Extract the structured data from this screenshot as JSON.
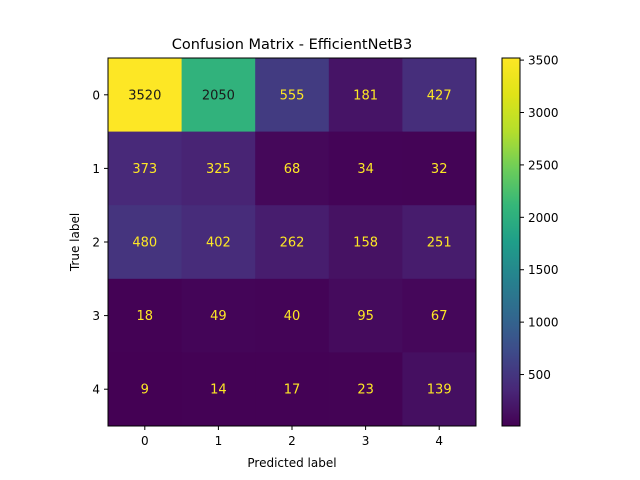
{
  "chart_data": {
    "type": "heatmap",
    "title": "Confusion Matrix - EfficientNetB3",
    "xlabel": "Predicted label",
    "ylabel": "True label",
    "x_categories": [
      "0",
      "1",
      "2",
      "3",
      "4"
    ],
    "y_categories": [
      "0",
      "1",
      "2",
      "3",
      "4"
    ],
    "values": [
      [
        3520,
        2050,
        555,
        181,
        427
      ],
      [
        373,
        325,
        68,
        34,
        32
      ],
      [
        480,
        402,
        262,
        158,
        251
      ],
      [
        18,
        49,
        40,
        95,
        67
      ],
      [
        9,
        14,
        17,
        23,
        139
      ]
    ],
    "colormap": "viridis",
    "vmin": 9,
    "vmax": 3520,
    "colorbar_ticks": [
      500,
      1000,
      1500,
      2000,
      2500,
      3000,
      3500
    ],
    "label_color_dark_cells": "#fde725",
    "label_color_light_cells": "#1a1a1a"
  }
}
